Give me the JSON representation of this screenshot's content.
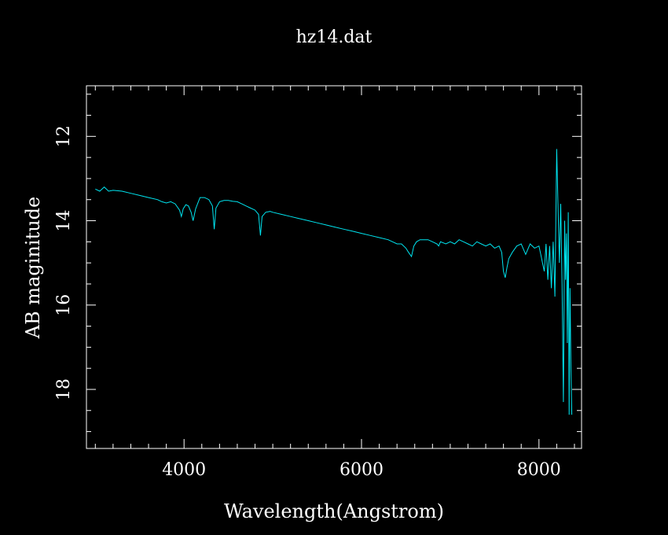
{
  "chart_data": {
    "type": "line",
    "title": "hz14.dat",
    "xlabel": "Wavelength(Angstrom)",
    "ylabel": "AB maginitude",
    "xlim": [
      2900,
      8480
    ],
    "ylim": [
      19.4,
      10.8
    ],
    "y_inverted": true,
    "xticks": [
      4000,
      6000,
      8000
    ],
    "yticks": [
      12,
      14,
      16,
      18
    ],
    "xtick_labels": [
      "4000",
      "6000",
      "8000"
    ],
    "ytick_labels": [
      "12",
      "14",
      "16",
      "18"
    ],
    "grid": false,
    "series": [
      {
        "color": "#00e5f0",
        "x": [
          3000,
          3050,
          3100,
          3150,
          3200,
          3300,
          3400,
          3500,
          3600,
          3700,
          3750,
          3800,
          3850,
          3900,
          3950,
          3970,
          3990,
          4020,
          4050,
          4080,
          4102,
          4130,
          4180,
          4230,
          4280,
          4320,
          4340,
          4360,
          4400,
          4450,
          4500,
          4550,
          4600,
          4650,
          4700,
          4750,
          4800,
          4840,
          4861,
          4880,
          4920,
          4970,
          5000,
          5100,
          5200,
          5300,
          5400,
          5500,
          5600,
          5700,
          5800,
          5900,
          6000,
          6100,
          6200,
          6300,
          6350,
          6400,
          6450,
          6500,
          6530,
          6563,
          6590,
          6620,
          6660,
          6700,
          6750,
          6800,
          6850,
          6870,
          6890,
          6950,
          7000,
          7050,
          7100,
          7150,
          7200,
          7250,
          7300,
          7350,
          7400,
          7450,
          7500,
          7550,
          7580,
          7600,
          7620,
          7640,
          7660,
          7700,
          7750,
          7800,
          7850,
          7900,
          7950,
          8000,
          8020,
          8040,
          8060,
          8080,
          8100,
          8120,
          8140,
          8160,
          8180,
          8200,
          8215,
          8230,
          8245,
          8260,
          8275,
          8290,
          8300,
          8310,
          8320,
          8330,
          8340,
          8350,
          8360,
          8370
        ],
        "y": [
          13.25,
          13.3,
          13.2,
          13.3,
          13.28,
          13.3,
          13.35,
          13.4,
          13.45,
          13.5,
          13.55,
          13.58,
          13.55,
          13.6,
          13.75,
          13.9,
          13.72,
          13.62,
          13.65,
          13.8,
          14.0,
          13.72,
          13.45,
          13.45,
          13.5,
          13.65,
          14.2,
          13.7,
          13.55,
          13.52,
          13.52,
          13.54,
          13.55,
          13.6,
          13.65,
          13.7,
          13.75,
          13.85,
          14.35,
          13.9,
          13.8,
          13.78,
          13.8,
          13.85,
          13.9,
          13.95,
          14.0,
          14.05,
          14.1,
          14.15,
          14.2,
          14.25,
          14.3,
          14.35,
          14.4,
          14.45,
          14.5,
          14.55,
          14.55,
          14.65,
          14.75,
          14.85,
          14.6,
          14.5,
          14.45,
          14.45,
          14.45,
          14.5,
          14.55,
          14.6,
          14.5,
          14.55,
          14.5,
          14.55,
          14.45,
          14.5,
          14.55,
          14.6,
          14.5,
          14.55,
          14.6,
          14.55,
          14.65,
          14.6,
          14.75,
          15.2,
          15.35,
          15.1,
          14.9,
          14.75,
          14.6,
          14.55,
          14.8,
          14.55,
          14.65,
          14.6,
          14.8,
          15.0,
          15.2,
          14.55,
          15.4,
          14.6,
          15.6,
          14.5,
          15.8,
          12.3,
          13.7,
          15.0,
          13.6,
          15.5,
          18.3,
          14.0,
          15.4,
          14.3,
          16.9,
          13.8,
          18.6,
          15.6,
          17.5,
          18.6
        ]
      }
    ]
  }
}
